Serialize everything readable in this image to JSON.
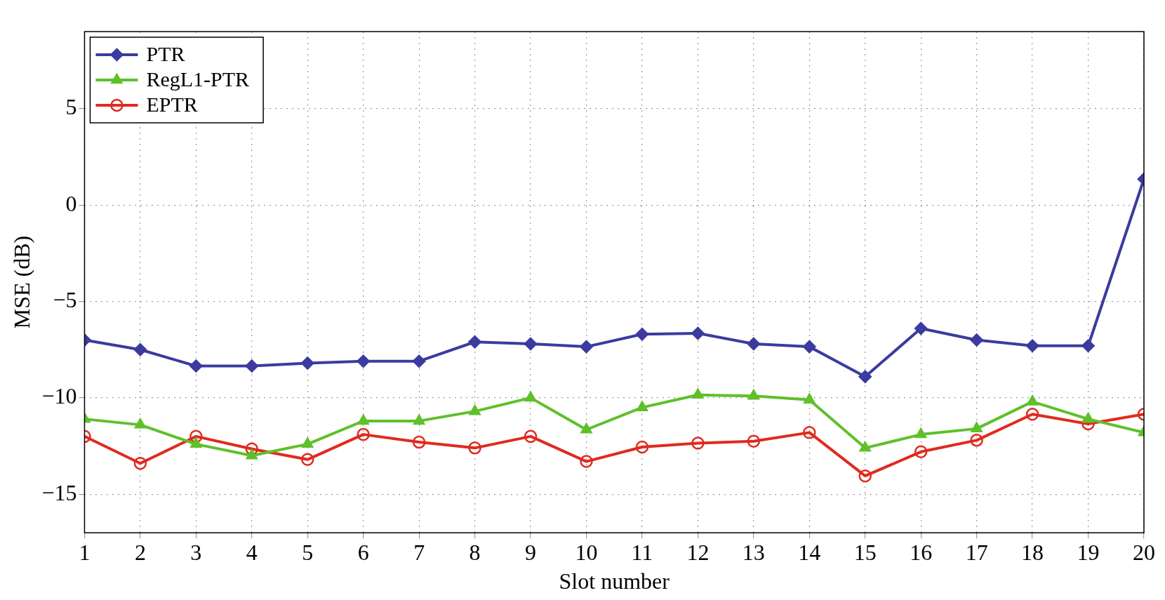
{
  "chart_data": {
    "type": "line",
    "xlabel": "Slot number",
    "ylabel": "MSE (dB)",
    "x": [
      1,
      2,
      3,
      4,
      5,
      6,
      7,
      8,
      9,
      10,
      11,
      12,
      13,
      14,
      15,
      16,
      17,
      18,
      19,
      20
    ],
    "xlim": [
      1,
      20
    ],
    "xticks": [
      1,
      2,
      3,
      4,
      5,
      6,
      7,
      8,
      9,
      10,
      11,
      12,
      13,
      14,
      15,
      16,
      17,
      18,
      19,
      20
    ],
    "ylim": [
      -17,
      9
    ],
    "yticks": [
      -15,
      -10,
      -5,
      0,
      5
    ],
    "grid": true,
    "legend": "top left",
    "line_style": "solid",
    "series": [
      {
        "name": "PTR",
        "color": "#3b3ba0",
        "marker": "diamond",
        "values": [
          -7.0,
          -7.5,
          -8.35,
          -8.35,
          -8.2,
          -8.1,
          -8.1,
          -7.1,
          -7.2,
          -7.35,
          -6.7,
          -6.65,
          -7.2,
          -7.35,
          -8.9,
          -6.4,
          -7.0,
          -7.3,
          -7.3,
          1.35
        ]
      },
      {
        "name": "RegL1-PTR",
        "color": "#5fc02a",
        "marker": "triangle",
        "values": [
          -11.1,
          -11.4,
          -12.4,
          -13.0,
          -12.4,
          -11.2,
          -11.2,
          -10.7,
          -10.0,
          -11.65,
          -10.5,
          -9.85,
          -9.9,
          -10.1,
          -12.6,
          -11.9,
          -11.6,
          -10.2,
          -11.1,
          -11.8
        ]
      },
      {
        "name": "EPTR",
        "color": "#e02a1f",
        "marker": "circle",
        "values": [
          -12.0,
          -13.4,
          -12.0,
          -12.65,
          -13.2,
          -11.9,
          -12.3,
          -12.6,
          -12.0,
          -13.3,
          -12.55,
          -12.35,
          -12.25,
          -11.8,
          -14.05,
          -12.8,
          -12.2,
          -10.85,
          -11.35,
          -10.85
        ]
      }
    ]
  }
}
